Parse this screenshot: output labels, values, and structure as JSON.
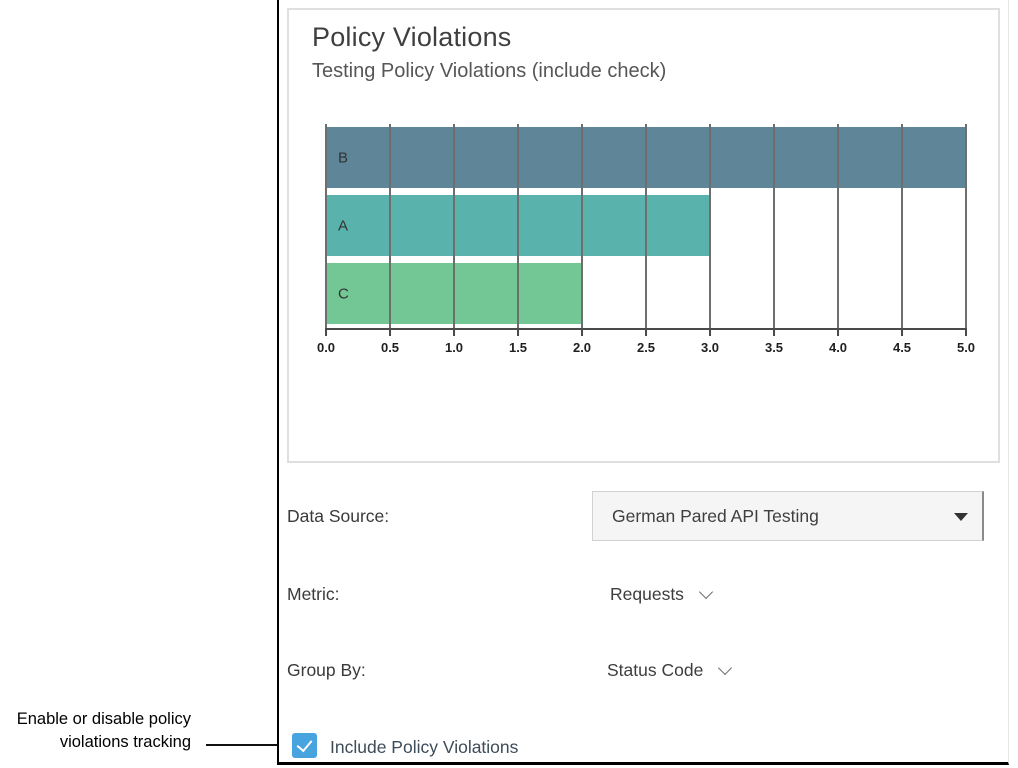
{
  "annotation": {
    "line1": "Enable or disable policy",
    "line2": "violations tracking"
  },
  "chart": {
    "title": "Policy Violations",
    "subtitle": "Testing Policy Violations (include check)",
    "chart_data": {
      "type": "bar",
      "orientation": "horizontal",
      "categories": [
        "B",
        "A",
        "C"
      ],
      "values": [
        5.0,
        3.0,
        2.0
      ],
      "xlim": [
        0,
        5
      ],
      "tick_labels": [
        "0.0",
        "0.5",
        "1.0",
        "1.5",
        "2.0",
        "2.5",
        "3.0",
        "3.5",
        "4.0",
        "4.5",
        "5.0"
      ],
      "bar_colors": [
        "#5e8598",
        "#59b2ac",
        "#73c794"
      ],
      "grid": true,
      "legend": false,
      "title": "Policy Violations",
      "xlabel": "",
      "ylabel": ""
    }
  },
  "form": {
    "data_source": {
      "label": "Data Source:",
      "value": "German Pared API Testing"
    },
    "metric": {
      "label": "Metric:",
      "value": "Requests"
    },
    "group_by": {
      "label": "Group By:",
      "value": "Status Code"
    },
    "include_policy_violations": {
      "label": "Include Policy Violations",
      "checked": true
    }
  },
  "colors": {
    "checkbox_accent": "#47a4de",
    "bar_b": "#5e8598",
    "bar_a": "#59b2ac",
    "bar_c": "#73c794",
    "panel_border": "#000000",
    "card_border": "#dfdfdf"
  }
}
